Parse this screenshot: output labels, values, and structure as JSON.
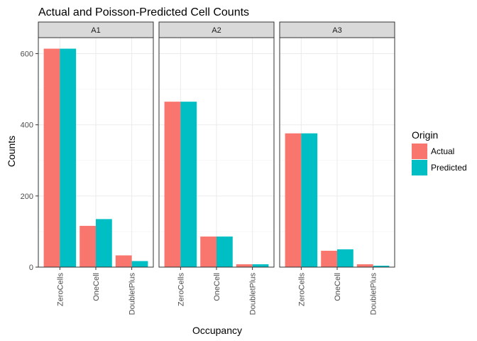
{
  "chart_data": {
    "type": "bar",
    "title": "Actual and Poisson-Predicted Cell Counts",
    "xlabel": "Occupancy",
    "ylabel": "Counts",
    "ylim": [
      0,
      645
    ],
    "yticks": [
      0,
      200,
      400,
      600
    ],
    "categories": [
      "ZeroCells",
      "OneCell",
      "DoubletPlus"
    ],
    "facets": [
      {
        "label": "A1",
        "series": [
          {
            "name": "Actual",
            "values": [
              614,
              116,
              33
            ]
          },
          {
            "name": "Predicted",
            "values": [
              614,
              135,
              17
            ]
          }
        ]
      },
      {
        "label": "A2",
        "series": [
          {
            "name": "Actual",
            "values": [
              465,
              86,
              8
            ]
          },
          {
            "name": "Predicted",
            "values": [
              465,
              86,
              8
            ]
          }
        ]
      },
      {
        "label": "A3",
        "series": [
          {
            "name": "Actual",
            "values": [
              376,
              46,
              8
            ]
          },
          {
            "name": "Predicted",
            "values": [
              376,
              50,
              4
            ]
          }
        ]
      }
    ],
    "legend": {
      "title": "Origin",
      "position": "right",
      "entries": [
        {
          "name": "Actual",
          "color": "#F8766D"
        },
        {
          "name": "Predicted",
          "color": "#00BFC4"
        }
      ]
    },
    "grid": true,
    "colors": {
      "Actual": "#F8766D",
      "Predicted": "#00BFC4",
      "strip": "#D9D9D9",
      "grid_major": "#EBEBEB",
      "grid_minor": "#F5F5F5",
      "border": "#333333"
    }
  }
}
